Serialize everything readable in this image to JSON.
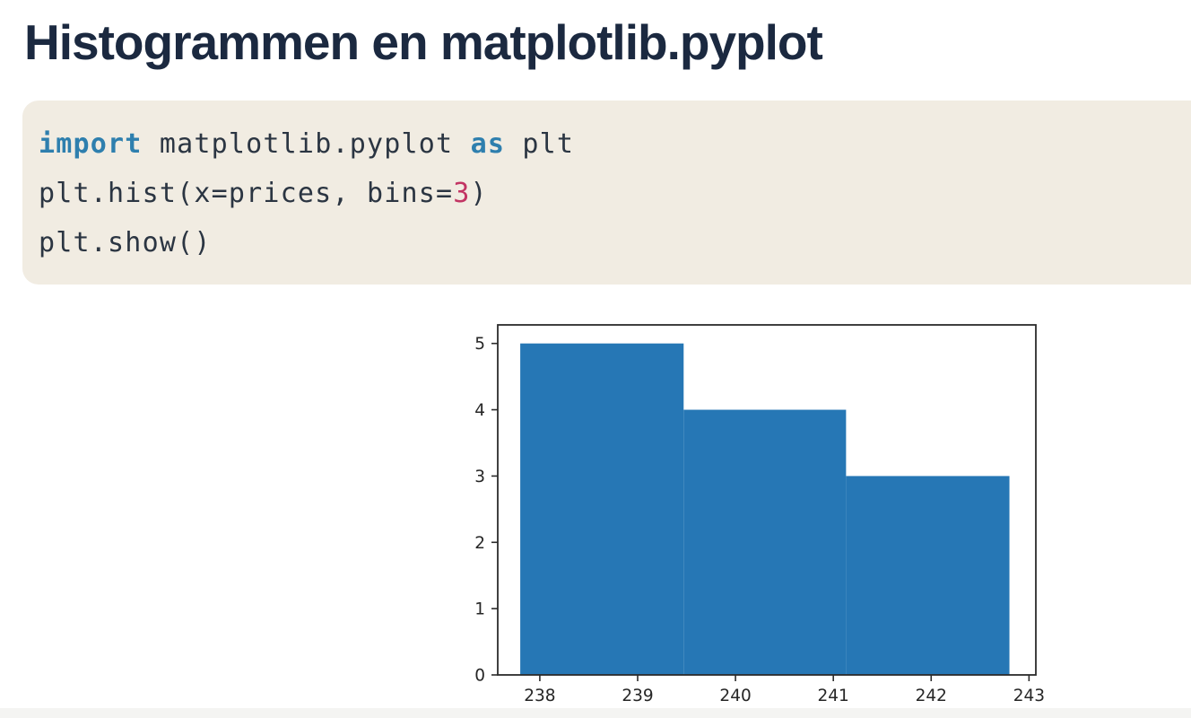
{
  "page": {
    "title": "Histogrammen en matplotlib.pyplot",
    "background": "#ffffff",
    "title_color": "#1b2940"
  },
  "code_block": {
    "background": "#f1ece2",
    "colors": {
      "keyword": "#2e7fae",
      "plain": "#2b3542",
      "number": "#c23463"
    },
    "lines": [
      {
        "segments": [
          {
            "text": "import",
            "role": "keyword"
          },
          {
            "text": " matplotlib.pyplot ",
            "role": "plain"
          },
          {
            "text": "as",
            "role": "keyword"
          },
          {
            "text": " plt",
            "role": "plain"
          }
        ]
      },
      {
        "segments": [
          {
            "text": "plt.hist(x=prices, bins=",
            "role": "plain"
          },
          {
            "text": "3",
            "role": "number"
          },
          {
            "text": ")",
            "role": "plain"
          }
        ]
      },
      {
        "segments": [
          {
            "text": "plt.show()",
            "role": "plain"
          }
        ]
      }
    ]
  },
  "chart_data": {
    "type": "bar",
    "subtype": "histogram",
    "title": "",
    "xlabel": "",
    "ylabel": "",
    "bin_edges": [
      237.8,
      239.47,
      241.13,
      242.8
    ],
    "counts": [
      5,
      4,
      3
    ],
    "x_ticks": [
      238,
      239,
      240,
      241,
      242,
      243
    ],
    "y_ticks": [
      0,
      1,
      2,
      3,
      4,
      5
    ],
    "xlim": [
      237.57,
      243.07
    ],
    "ylim": [
      0,
      5.28
    ],
    "grid": false,
    "legend": false,
    "bar_color": "#2677b5",
    "frame_color": "#2b2b2b",
    "tick_label_color": "#262626"
  }
}
